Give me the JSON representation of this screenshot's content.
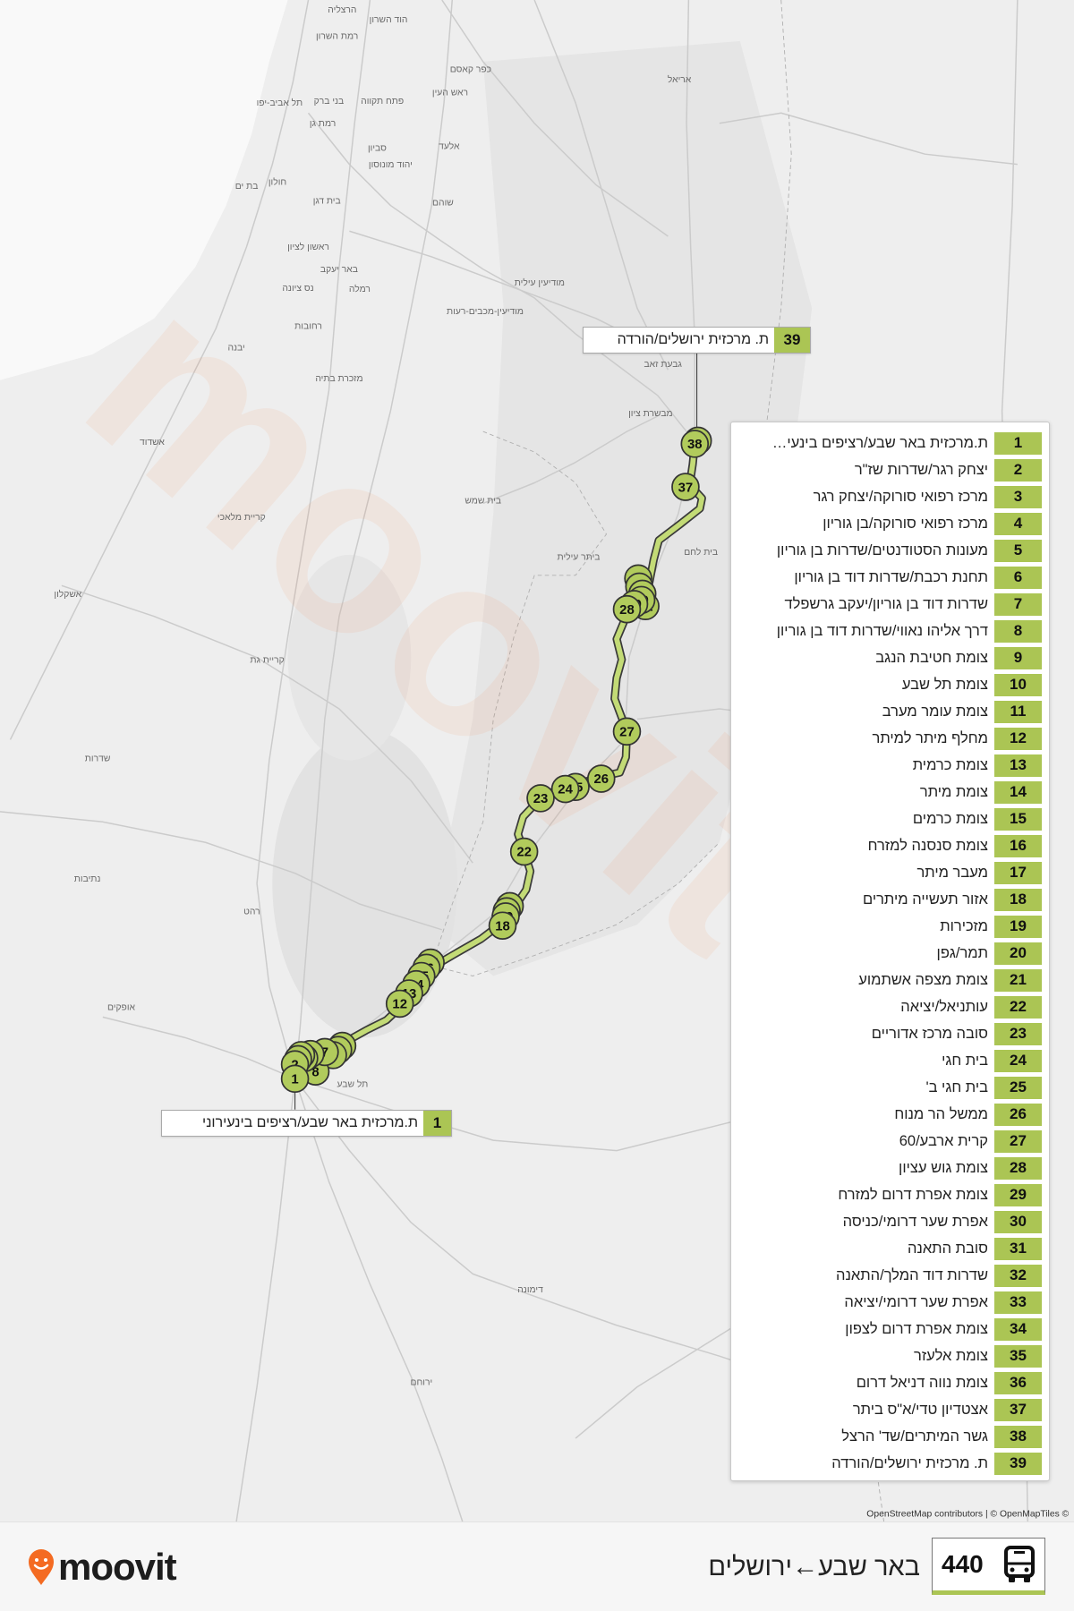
{
  "route": {
    "number": "440",
    "title": "באר שבע←ירושלים",
    "color": "#abc554"
  },
  "callouts": {
    "destination": {
      "num": "39",
      "name": "ת. מרכזית ירושלים/הורדה"
    },
    "origin": {
      "num": "1",
      "name": "ת.מרכזית באר שבע/רציפים בינעירוני"
    }
  },
  "stops": [
    {
      "num": "1",
      "name": "ת.מרכזית באר שבע/רציפים בינעי…"
    },
    {
      "num": "2",
      "name": "יצחק רגר/שדרות שז\"ר"
    },
    {
      "num": "3",
      "name": "מרכז רפואי סורוקה/יצחק רגר"
    },
    {
      "num": "4",
      "name": "מרכז רפואי סורוקה/בן גוריון"
    },
    {
      "num": "5",
      "name": "מעונות הסטודנטים/שדרות בן גוריון"
    },
    {
      "num": "6",
      "name": "תחנת רכבת/שדרות דוד בן גוריון"
    },
    {
      "num": "7",
      "name": "שדרות דוד בן גוריון/יעקב גרשפלד"
    },
    {
      "num": "8",
      "name": "דרך אליהו נאווי/שדרות דוד בן גוריון"
    },
    {
      "num": "9",
      "name": "צומת חטיבת הנגב"
    },
    {
      "num": "10",
      "name": "צומת תל שבע"
    },
    {
      "num": "11",
      "name": "צומת עומר מערב"
    },
    {
      "num": "12",
      "name": "מחלף מיתר למיתר"
    },
    {
      "num": "13",
      "name": "צומת כרמית"
    },
    {
      "num": "14",
      "name": "צומת מיתר"
    },
    {
      "num": "15",
      "name": "צומת כרמים"
    },
    {
      "num": "16",
      "name": "צומת סנסנה למזרח"
    },
    {
      "num": "17",
      "name": "מעבר מיתר"
    },
    {
      "num": "18",
      "name": "אזור תעשייה מיתרים"
    },
    {
      "num": "19",
      "name": "מזכירות"
    },
    {
      "num": "20",
      "name": "תמר/גפן"
    },
    {
      "num": "21",
      "name": "צומת מצפה אשתמוע"
    },
    {
      "num": "22",
      "name": "עותניאל/יציאה"
    },
    {
      "num": "23",
      "name": "סובה מרכז אדוריים"
    },
    {
      "num": "24",
      "name": "בית חגי"
    },
    {
      "num": "25",
      "name": "בית חגי ב'"
    },
    {
      "num": "26",
      "name": "ממשל הר מנוח"
    },
    {
      "num": "27",
      "name": "קרית ארבע/60"
    },
    {
      "num": "28",
      "name": "צומת גוש עציון"
    },
    {
      "num": "29",
      "name": "צומת אפרת דרום למזרח"
    },
    {
      "num": "30",
      "name": "אפרת שער דרומי/כניסה"
    },
    {
      "num": "31",
      "name": "סובת התאנה"
    },
    {
      "num": "32",
      "name": "שדרות דוד המלך/התאנה"
    },
    {
      "num": "33",
      "name": "אפרת שער דרומי/יציאה"
    },
    {
      "num": "34",
      "name": "צומת אפרת דרום לצפון"
    },
    {
      "num": "35",
      "name": "צומת אלעזר"
    },
    {
      "num": "36",
      "name": "צומת נווה דניאל דרום"
    },
    {
      "num": "37",
      "name": "אצטדיון טדי/א\"ס ביתר"
    },
    {
      "num": "38",
      "name": "גשר המיתרים/שד' הרצל"
    },
    {
      "num": "39",
      "name": "ת. מרכזית ירושלים/הורדה"
    }
  ],
  "map": {
    "place_labels": [
      "הרצליה",
      "הוד השרון",
      "רמת השרון",
      "כפר קאסם",
      "אריאל",
      "ראש העין",
      "פתח תקווה",
      "בני ברק",
      "תל אביב-יפו",
      "רמת גן",
      "אלעד",
      "סביון",
      "יהוד מונוסון",
      "חולון",
      "בת ים",
      "בית דגן",
      "שוהם",
      "ראשון לציון",
      "באר יעקב",
      "מודיעין עילית",
      "נס ציונה",
      "רמלה",
      "מודיעין-מכבים-רעות",
      "רחובות",
      "יבנה",
      "גבעת זאב",
      "מזכרת בתיה",
      "מבשרת ציון",
      "אשדוד",
      "בית שמש",
      "קריית מלאכי",
      "בית לחם",
      "ביתר עילית",
      "אשקלון",
      "קריית גת",
      "שדרות",
      "נתיבות",
      "רהט",
      "אופקים",
      "תל שבע",
      "דימונה",
      "ירוחם"
    ],
    "attribution": "OpenStreetMap contributors | © OpenMapTiles ©",
    "watermark": "moovit",
    "colors": {
      "land": "#eeeeee",
      "sea": "#f9f9f9",
      "route_line": "#c3db76",
      "route_outline": "#3a3a3a",
      "marker_fill": "#b1cb5c",
      "marker_stroke": "#333333"
    }
  },
  "brand": {
    "logo_text": "moovit",
    "logo_color": "#f46b22"
  },
  "icons": {
    "bus": "bus-icon",
    "logo": "moovit-pin-icon"
  }
}
